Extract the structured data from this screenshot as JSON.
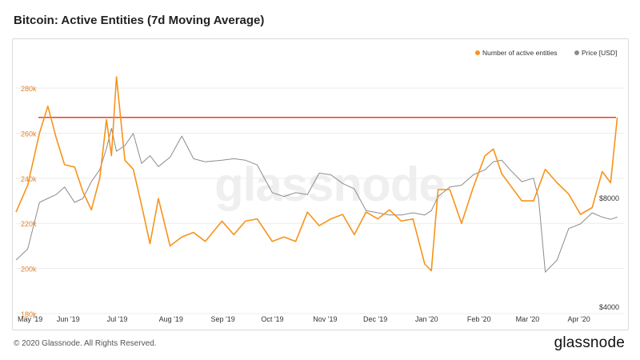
{
  "header": {
    "title": "Bitcoin: Active Entities (7d Moving Average)"
  },
  "footer": {
    "copyright": "© 2020 Glassnode. All Rights Reserved.",
    "logo": "glassnode"
  },
  "watermark": "glassnode",
  "colors": {
    "entities": "#f7931a",
    "price": "#8c8c8c",
    "threshold": "#e8401c",
    "axis_left": "#e3832a",
    "axis_right": "#333333"
  },
  "chart_data": {
    "type": "line",
    "title": "Bitcoin: Active Entities (7d Moving Average)",
    "legend": {
      "placement": "top-right",
      "items": [
        "Number of active entities",
        "Price [USD]"
      ]
    },
    "grid": true,
    "x_ticks": [
      "May '19",
      "Jun '19",
      "Jul '19",
      "Aug '19",
      "Sep '19",
      "Oct '19",
      "Nov '19",
      "Dec '19",
      "Jan '20",
      "Feb '20",
      "Mar '20",
      "Apr '20"
    ],
    "y_left": {
      "ticks": [
        "180k",
        "200k",
        "220k",
        "240k",
        "260k",
        "280k"
      ],
      "range": [
        180000,
        296000
      ]
    },
    "y_right": {
      "ticks": [
        "$4000",
        "$8000"
      ],
      "scale": "log"
    },
    "threshold": {
      "value": 267000
    },
    "series": [
      {
        "name": "Number of active entities",
        "axis": "left",
        "x": [
          "2019-05-01",
          "2019-05-08",
          "2019-05-15",
          "2019-05-20",
          "2019-05-25",
          "2019-05-30",
          "2019-06-05",
          "2019-06-10",
          "2019-06-15",
          "2019-06-20",
          "2019-06-24",
          "2019-06-27",
          "2019-06-30",
          "2019-07-05",
          "2019-07-10",
          "2019-07-15",
          "2019-07-20",
          "2019-07-25",
          "2019-08-01",
          "2019-08-08",
          "2019-08-15",
          "2019-08-22",
          "2019-09-01",
          "2019-09-08",
          "2019-09-15",
          "2019-09-22",
          "2019-10-01",
          "2019-10-08",
          "2019-10-15",
          "2019-10-22",
          "2019-10-29",
          "2019-11-05",
          "2019-11-12",
          "2019-11-19",
          "2019-11-26",
          "2019-12-03",
          "2019-12-10",
          "2019-12-17",
          "2019-12-24",
          "2019-12-31",
          "2020-01-04",
          "2020-01-08",
          "2020-01-15",
          "2020-01-22",
          "2020-01-29",
          "2020-02-05",
          "2020-02-10",
          "2020-02-15",
          "2020-02-20",
          "2020-02-27",
          "2020-03-05",
          "2020-03-12",
          "2020-03-19",
          "2020-03-26",
          "2020-04-02",
          "2020-04-09",
          "2020-04-15",
          "2020-04-20",
          "2020-04-24"
        ],
        "values": [
          225000,
          237000,
          260000,
          272000,
          258000,
          246000,
          245000,
          234000,
          226000,
          240000,
          266000,
          250000,
          285000,
          248000,
          244000,
          228000,
          211000,
          231000,
          210000,
          214000,
          216000,
          212000,
          221000,
          215000,
          221000,
          222000,
          212000,
          214000,
          212000,
          225000,
          219000,
          222000,
          224000,
          215000,
          225000,
          222000,
          226000,
          221000,
          222000,
          202000,
          199000,
          235000,
          235000,
          220000,
          236000,
          250000,
          253000,
          242000,
          237000,
          230000,
          230000,
          244000,
          238000,
          233000,
          224000,
          227000,
          243000,
          238000,
          267000
        ]
      },
      {
        "name": "Price [USD]",
        "axis": "right",
        "x": [
          "2019-05-01",
          "2019-05-08",
          "2019-05-15",
          "2019-05-20",
          "2019-05-25",
          "2019-05-30",
          "2019-06-05",
          "2019-06-10",
          "2019-06-15",
          "2019-06-20",
          "2019-06-24",
          "2019-06-27",
          "2019-06-30",
          "2019-07-05",
          "2019-07-10",
          "2019-07-15",
          "2019-07-20",
          "2019-07-25",
          "2019-08-01",
          "2019-08-08",
          "2019-08-15",
          "2019-08-22",
          "2019-09-01",
          "2019-09-08",
          "2019-09-15",
          "2019-09-22",
          "2019-10-01",
          "2019-10-08",
          "2019-10-15",
          "2019-10-22",
          "2019-10-29",
          "2019-11-05",
          "2019-11-12",
          "2019-11-19",
          "2019-11-26",
          "2019-12-03",
          "2019-12-10",
          "2019-12-17",
          "2019-12-24",
          "2019-12-31",
          "2020-01-04",
          "2020-01-08",
          "2020-01-15",
          "2020-01-22",
          "2020-01-29",
          "2020-02-05",
          "2020-02-10",
          "2020-02-15",
          "2020-02-20",
          "2020-02-27",
          "2020-03-05",
          "2020-03-08",
          "2020-03-12",
          "2020-03-19",
          "2020-03-26",
          "2020-04-02",
          "2020-04-09",
          "2020-04-15",
          "2020-04-20",
          "2020-04-24"
        ],
        "values": [
          5400,
          5800,
          7800,
          8000,
          8200,
          8600,
          7800,
          8000,
          8900,
          9600,
          11000,
          12500,
          10800,
          11200,
          12100,
          10000,
          10500,
          9800,
          10400,
          11900,
          10300,
          10100,
          10200,
          10300,
          10200,
          9900,
          8300,
          8100,
          8300,
          8200,
          9400,
          9300,
          8800,
          8500,
          7400,
          7300,
          7200,
          7200,
          7300,
          7200,
          7400,
          8100,
          8600,
          8700,
          9300,
          9600,
          10100,
          10200,
          9600,
          8900,
          9100,
          8000,
          5000,
          5400,
          6600,
          6800,
          7300,
          7100,
          7000,
          7100
        ]
      }
    ]
  }
}
